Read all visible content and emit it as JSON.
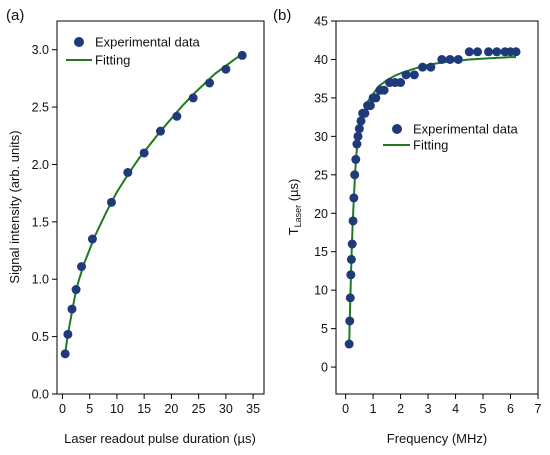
{
  "colors": {
    "marker": "#1f3a7a",
    "fit": "#1f7a1f",
    "axis": "#000000"
  },
  "chart_data": [
    {
      "type": "scatter",
      "panel_label": "(a)",
      "xlabel": "Laser readout pulse duration (µs)",
      "ylabel": "Signal intensity (arb. units)",
      "xlim": [
        -1,
        37
      ],
      "ylim": [
        0,
        3.25
      ],
      "xticks": [
        0,
        5,
        10,
        15,
        20,
        25,
        30,
        35
      ],
      "yticks": [
        0.0,
        0.5,
        1.0,
        1.5,
        2.0,
        2.5,
        3.0
      ],
      "ytick_labels": [
        "0.0",
        "0.5",
        "1.0",
        "1.5",
        "2.0",
        "2.5",
        "3.0"
      ],
      "legend": {
        "position": "top-left",
        "entries": [
          "Experimental data",
          "Fitting"
        ]
      },
      "series": [
        {
          "name": "Experimental data",
          "kind": "markers",
          "x": [
            0.5,
            1.0,
            1.75,
            2.5,
            3.5,
            5.5,
            9,
            12,
            15,
            18,
            21,
            24,
            27,
            30,
            33
          ],
          "y": [
            0.35,
            0.52,
            0.74,
            0.91,
            1.11,
            1.35,
            1.67,
            1.93,
            2.1,
            2.29,
            2.42,
            2.58,
            2.71,
            2.83,
            2.95
          ]
        },
        {
          "name": "Fitting",
          "kind": "line",
          "x": [
            0.5,
            0.75,
            1.0,
            1.5,
            2.0,
            2.5,
            3.0,
            4.0,
            5.0,
            6.0,
            8.0,
            10,
            12,
            14,
            16,
            18,
            20,
            22,
            24,
            26,
            28,
            30,
            32,
            33
          ],
          "y": [
            0.35,
            0.44,
            0.52,
            0.65,
            0.78,
            0.9,
            0.99,
            1.14,
            1.26,
            1.38,
            1.58,
            1.76,
            1.91,
            2.05,
            2.17,
            2.29,
            2.4,
            2.51,
            2.61,
            2.7,
            2.79,
            2.86,
            2.93,
            2.95
          ]
        }
      ]
    },
    {
      "type": "scatter",
      "panel_label": "(b)",
      "xlabel": "Frequency (MHz)",
      "ylabel_main": "T",
      "ylabel_sub": "Laser",
      "ylabel_unit": " (µs)",
      "xlim": [
        -0.35,
        7
      ],
      "ylim": [
        -3.5,
        45
      ],
      "xticks": [
        0,
        1,
        2,
        3,
        4,
        5,
        6,
        7
      ],
      "yticks": [
        0,
        5,
        10,
        15,
        20,
        25,
        30,
        35,
        40,
        45
      ],
      "legend": {
        "position": "center-right",
        "entries": [
          "Experimental data",
          "Fitting"
        ]
      },
      "series": [
        {
          "name": "Experimental data",
          "kind": "markers",
          "x": [
            0.13,
            0.15,
            0.17,
            0.19,
            0.21,
            0.24,
            0.27,
            0.3,
            0.33,
            0.37,
            0.41,
            0.45,
            0.5,
            0.56,
            0.62,
            0.7,
            0.8,
            0.9,
            1.0,
            1.1,
            1.25,
            1.4,
            1.6,
            1.8,
            2.0,
            2.2,
            2.5,
            2.8,
            3.1,
            3.5,
            3.8,
            4.1,
            4.5,
            4.8,
            5.2,
            5.5,
            5.8,
            6.0,
            6.2
          ],
          "y": [
            3,
            6,
            9,
            12,
            14,
            16,
            19,
            22,
            25,
            27,
            29,
            30,
            31,
            32,
            33,
            33,
            34,
            34,
            35,
            35,
            36,
            36,
            37,
            37,
            37,
            38,
            38,
            39,
            39,
            40,
            40,
            40,
            41,
            41,
            41,
            41,
            41,
            41,
            41
          ]
        },
        {
          "name": "Fitting",
          "kind": "line",
          "x": [
            0.13,
            0.15,
            0.18,
            0.21,
            0.25,
            0.3,
            0.35,
            0.4,
            0.5,
            0.6,
            0.7,
            0.8,
            1.0,
            1.2,
            1.5,
            1.8,
            2.0,
            2.5,
            3.0,
            3.5,
            4.0,
            4.5,
            5.0,
            5.5,
            6.0,
            6.2
          ],
          "y": [
            3,
            6,
            10,
            14,
            18,
            22,
            25.5,
            28,
            31,
            32.5,
            33.5,
            34.5,
            35.5,
            36.5,
            37.3,
            37.9,
            38.2,
            38.8,
            39.3,
            39.6,
            39.8,
            40.0,
            40.1,
            40.2,
            40.3,
            40.3
          ]
        }
      ]
    }
  ]
}
